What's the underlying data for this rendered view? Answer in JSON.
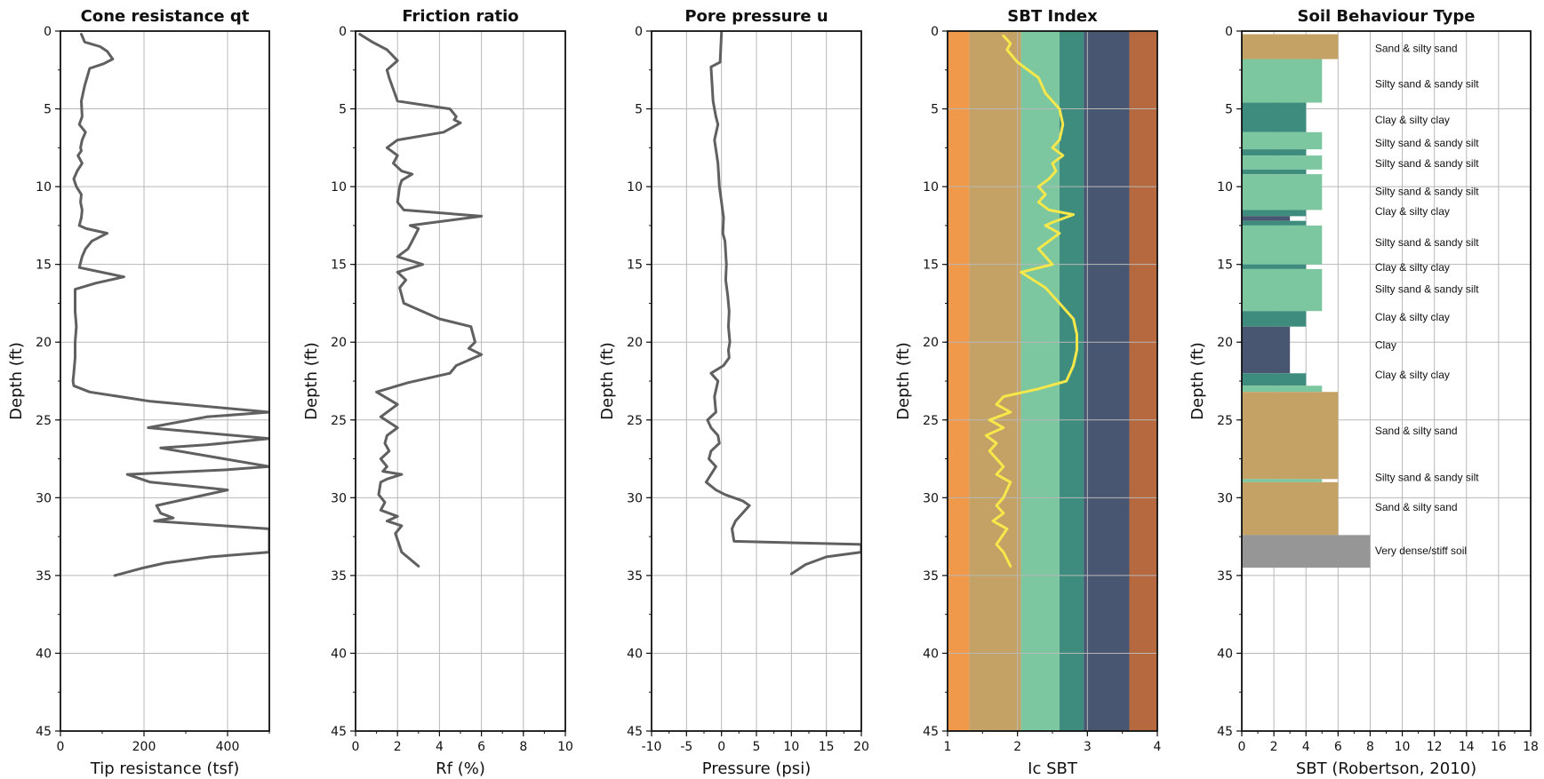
{
  "chart_data": [
    {
      "type": "line",
      "title": "Cone resistance qt",
      "xlabel": "Tip resistance (tsf)",
      "ylabel": "Depth (ft)",
      "xlim": [
        0,
        500
      ],
      "ylim": [
        45,
        0
      ],
      "xticks": [
        "0",
        "200",
        "400"
      ],
      "yticks": [
        "0",
        "5",
        "10",
        "15",
        "20",
        "25",
        "30",
        "35",
        "40",
        "45"
      ],
      "grid": true,
      "line_color": "#606060",
      "series": [
        {
          "x": [
            50,
            58,
            95,
            112,
            125,
            103,
            70,
            58,
            50,
            52,
            45,
            60,
            52,
            48,
            50,
            42,
            52,
            40,
            32,
            38,
            50,
            48,
            52,
            50,
            45,
            62,
            112,
            75,
            60,
            52,
            45,
            152,
            85,
            35,
            35,
            38,
            35,
            35,
            32,
            30,
            32,
            70,
            215,
            500,
            350,
            210,
            500,
            350,
            240,
            500,
            400,
            160,
            215,
            330,
            400,
            230,
            240,
            270,
            225,
            500,
            500,
            360,
            250,
            200,
            130
          ],
          "y": [
            0.2,
            0.7,
            1.0,
            1.3,
            1.8,
            2.1,
            2.4,
            3.5,
            4.5,
            5.5,
            6.0,
            6.5,
            7.0,
            7.5,
            7.7,
            8.0,
            8.5,
            9.0,
            9.5,
            10.0,
            10.5,
            11.0,
            11.5,
            12.0,
            12.5,
            12.7,
            13.0,
            13.5,
            14.0,
            14.5,
            15.2,
            15.8,
            16.2,
            16.6,
            18.0,
            19.0,
            20.0,
            21.0,
            22.0,
            22.5,
            22.8,
            23.2,
            23.8,
            24.5,
            24.8,
            25.5,
            26.2,
            26.6,
            26.8,
            28.0,
            28.2,
            28.5,
            29.0,
            29.3,
            29.5,
            30.5,
            31.0,
            31.3,
            31.5,
            32.0,
            33.5,
            33.8,
            34.2,
            34.5,
            35.0
          ]
        }
      ]
    },
    {
      "type": "line",
      "title": "Friction ratio",
      "xlabel": "Rf (%)",
      "ylabel": "Depth (ft)",
      "xlim": [
        0,
        10
      ],
      "ylim": [
        45,
        0
      ],
      "xticks": [
        "0",
        "2",
        "4",
        "6",
        "8",
        "10"
      ],
      "yticks": [
        "0",
        "5",
        "10",
        "15",
        "20",
        "25",
        "30",
        "35",
        "40",
        "45"
      ],
      "grid": true,
      "line_color": "#606060",
      "series": [
        {
          "x": [
            0.2,
            0.8,
            1.5,
            2.0,
            1.5,
            1.6,
            2.0,
            4.5,
            4.8,
            4.7,
            5.0,
            4.2,
            2.0,
            1.5,
            2.0,
            1.8,
            2.2,
            2.7,
            2.2,
            2.1,
            2.0,
            2.3,
            6.0,
            2.6,
            3.0,
            2.7,
            2.5,
            2.0,
            3.2,
            2.0,
            2.4,
            2.1,
            2.3,
            4.0,
            5.5,
            5.7,
            5.4,
            6.0,
            4.8,
            4.5,
            2.5,
            1.0,
            2.0,
            1.2,
            2.0,
            1.5,
            1.4,
            1.6,
            1.2,
            1.5,
            1.3,
            2.2,
            1.5,
            1.2,
            1.1,
            1.4,
            1.2,
            2.0,
            1.5,
            2.2,
            1.9,
            2.0,
            2.2,
            3.0
          ],
          "y": [
            0.2,
            0.7,
            1.2,
            1.9,
            2.5,
            3.0,
            4.5,
            5.0,
            5.5,
            5.7,
            5.9,
            6.5,
            7.0,
            7.5,
            8.0,
            8.5,
            9.0,
            9.2,
            9.6,
            10.0,
            11.0,
            11.5,
            11.9,
            12.5,
            12.7,
            13.5,
            14.0,
            14.5,
            15.0,
            15.5,
            16.0,
            16.5,
            17.5,
            18.5,
            19.0,
            20.0,
            20.4,
            20.8,
            21.5,
            22.0,
            22.6,
            23.2,
            24.0,
            24.8,
            25.5,
            26.0,
            26.5,
            27.0,
            27.5,
            28.0,
            28.3,
            28.5,
            28.8,
            29.0,
            29.8,
            30.3,
            30.8,
            31.2,
            31.5,
            31.8,
            32.3,
            32.7,
            33.5,
            34.4
          ]
        }
      ]
    },
    {
      "type": "line",
      "title": "Pore pressure u",
      "xlabel": "Pressure (psi)",
      "ylabel": "Depth (ft)",
      "xlim": [
        -10,
        20
      ],
      "ylim": [
        45,
        0
      ],
      "xticks": [
        "-10",
        "-5",
        "0",
        "5",
        "10",
        "15",
        "20"
      ],
      "yticks": [
        "0",
        "5",
        "10",
        "15",
        "20",
        "25",
        "30",
        "35",
        "40",
        "45"
      ],
      "grid": true,
      "line_color": "#606060",
      "series": [
        {
          "x": [
            0,
            -0.2,
            -1.5,
            -1.2,
            -1.0,
            -0.8,
            -0.5,
            -1.0,
            -0.5,
            -0.3,
            0.0,
            0.3,
            0.2,
            0.5,
            0.7,
            0.6,
            0.9,
            1.1,
            1.0,
            1.2,
            1.0,
            1.1,
            0.3,
            -1.5,
            -0.5,
            -1.0,
            -0.8,
            -2.0,
            -1.5,
            -0.5,
            -0.3,
            -1.5,
            -1.8,
            -0.8,
            -1.5,
            -2.2,
            -0.8,
            0.5,
            3.0,
            4.0,
            2.0,
            1.5,
            1.8,
            20.0,
            20.0,
            15.0,
            12.0,
            10.0
          ],
          "y": [
            0.1,
            2.0,
            2.3,
            4.5,
            5.0,
            5.5,
            6.0,
            7.0,
            8.5,
            10.0,
            11.0,
            12.0,
            13.0,
            13.5,
            15.0,
            16.0,
            17.0,
            18.0,
            19.0,
            20.0,
            20.5,
            21.0,
            21.5,
            22.0,
            22.5,
            23.5,
            24.5,
            25.0,
            25.5,
            26.0,
            26.5,
            27.0,
            27.5,
            28.0,
            28.5,
            29.0,
            29.5,
            29.8,
            30.2,
            30.5,
            31.5,
            32.0,
            32.8,
            33.0,
            33.5,
            33.8,
            34.3,
            34.9
          ]
        }
      ]
    },
    {
      "type": "line",
      "title": "SBT Index",
      "xlabel": "Ic SBT",
      "ylabel": "Depth (ft)",
      "xlim": [
        1,
        4
      ],
      "ylim": [
        45,
        0
      ],
      "xticks": [
        "1",
        "2",
        "3",
        "4"
      ],
      "yticks": [
        "0",
        "5",
        "10",
        "15",
        "20",
        "25",
        "30",
        "35",
        "40",
        "45"
      ],
      "grid": true,
      "line_color": "#f6e84a",
      "zones": [
        {
          "from": 1.0,
          "to": 1.31,
          "color": "#f0994a"
        },
        {
          "from": 1.31,
          "to": 2.05,
          "color": "#c4a265"
        },
        {
          "from": 2.05,
          "to": 2.6,
          "color": "#7cc6a0"
        },
        {
          "from": 2.6,
          "to": 2.95,
          "color": "#3e8c7e"
        },
        {
          "from": 2.95,
          "to": 3.6,
          "color": "#485672"
        },
        {
          "from": 3.6,
          "to": 4.0,
          "color": "#b6683e"
        }
      ],
      "series": [
        {
          "x": [
            1.8,
            1.9,
            1.85,
            2.0,
            2.3,
            2.4,
            2.6,
            2.65,
            2.6,
            2.5,
            2.65,
            2.5,
            2.55,
            2.45,
            2.3,
            2.4,
            2.3,
            2.45,
            2.8,
            2.5,
            2.4,
            2.6,
            2.3,
            2.5,
            2.05,
            2.4,
            2.6,
            2.8,
            2.85,
            2.85,
            2.8,
            2.7,
            2.3,
            1.8,
            1.7,
            1.9,
            1.6,
            1.8,
            1.55,
            1.7,
            1.6,
            1.8,
            1.7,
            1.9,
            1.8,
            1.7,
            1.8,
            1.65,
            1.85,
            1.7,
            1.8,
            1.9
          ],
          "y": [
            0.3,
            0.8,
            1.2,
            2.0,
            3.0,
            4.0,
            5.0,
            6.0,
            7.0,
            7.5,
            8.0,
            8.5,
            9.0,
            9.5,
            10.0,
            10.5,
            11.0,
            11.5,
            11.8,
            12.3,
            12.5,
            13.0,
            14.0,
            15.0,
            15.5,
            16.5,
            17.5,
            18.5,
            19.5,
            20.5,
            21.5,
            22.5,
            23.0,
            23.5,
            24.0,
            24.5,
            25.0,
            25.5,
            26.0,
            26.5,
            27.0,
            28.0,
            28.5,
            29.0,
            30.0,
            30.5,
            31.0,
            31.5,
            32.0,
            33.0,
            33.5,
            34.4
          ]
        }
      ]
    },
    {
      "type": "bar",
      "title": "Soil Behaviour Type",
      "xlabel": "SBT (Robertson, 2010)",
      "ylabel": "Depth (ft)",
      "xlim": [
        0,
        18
      ],
      "ylim": [
        45,
        0
      ],
      "xticks": [
        "0",
        "2",
        "4",
        "6",
        "8",
        "10",
        "12",
        "14",
        "16",
        "18"
      ],
      "yticks": [
        "0",
        "5",
        "10",
        "15",
        "20",
        "25",
        "30",
        "35",
        "40",
        "45"
      ],
      "grid": true,
      "layers": [
        {
          "top": 0.2,
          "bottom": 1.8,
          "sbt": 6,
          "color": "#c4a265"
        },
        {
          "top": 1.8,
          "bottom": 4.6,
          "sbt": 5,
          "color": "#7cc6a0"
        },
        {
          "top": 4.6,
          "bottom": 6.5,
          "sbt": 4,
          "color": "#3e8c7e"
        },
        {
          "top": 6.5,
          "bottom": 7.6,
          "sbt": 5,
          "color": "#7cc6a0"
        },
        {
          "top": 7.6,
          "bottom": 8.0,
          "sbt": 4,
          "color": "#3e8c7e"
        },
        {
          "top": 8.0,
          "bottom": 8.9,
          "sbt": 5,
          "color": "#7cc6a0"
        },
        {
          "top": 8.9,
          "bottom": 9.2,
          "sbt": 4,
          "color": "#3e8c7e"
        },
        {
          "top": 9.2,
          "bottom": 11.5,
          "sbt": 5,
          "color": "#7cc6a0"
        },
        {
          "top": 11.5,
          "bottom": 11.9,
          "sbt": 4,
          "color": "#3e8c7e"
        },
        {
          "top": 11.9,
          "bottom": 12.2,
          "sbt": 3,
          "color": "#485672"
        },
        {
          "top": 12.2,
          "bottom": 12.5,
          "sbt": 4,
          "color": "#3e8c7e"
        },
        {
          "top": 12.5,
          "bottom": 15.0,
          "sbt": 5,
          "color": "#7cc6a0"
        },
        {
          "top": 15.0,
          "bottom": 15.3,
          "sbt": 4,
          "color": "#3e8c7e"
        },
        {
          "top": 15.3,
          "bottom": 18.0,
          "sbt": 5,
          "color": "#7cc6a0"
        },
        {
          "top": 18.0,
          "bottom": 19.0,
          "sbt": 4,
          "color": "#3e8c7e"
        },
        {
          "top": 19.0,
          "bottom": 22.0,
          "sbt": 3,
          "color": "#485672"
        },
        {
          "top": 22.0,
          "bottom": 22.8,
          "sbt": 4,
          "color": "#3e8c7e"
        },
        {
          "top": 22.8,
          "bottom": 23.2,
          "sbt": 5,
          "color": "#7cc6a0"
        },
        {
          "top": 23.2,
          "bottom": 28.8,
          "sbt": 6,
          "color": "#c4a265"
        },
        {
          "top": 28.8,
          "bottom": 29.0,
          "sbt": 5,
          "color": "#7cc6a0"
        },
        {
          "top": 29.0,
          "bottom": 32.4,
          "sbt": 6,
          "color": "#c4a265"
        },
        {
          "top": 32.4,
          "bottom": 34.5,
          "sbt": 8,
          "color": "#969696"
        }
      ],
      "annotations": [
        {
          "depth": 1.1,
          "text": "Sand & silty sand"
        },
        {
          "depth": 3.4,
          "text": "Silty sand & sandy silt"
        },
        {
          "depth": 5.7,
          "text": "Clay & silty clay"
        },
        {
          "depth": 7.2,
          "text": "Silty sand & sandy silt"
        },
        {
          "depth": 8.5,
          "text": "Silty sand & sandy silt"
        },
        {
          "depth": 10.3,
          "text": "Silty sand & sandy silt"
        },
        {
          "depth": 11.6,
          "text": "Clay & silty clay"
        },
        {
          "depth": 13.6,
          "text": "Silty sand & sandy silt"
        },
        {
          "depth": 15.2,
          "text": "Clay & silty clay"
        },
        {
          "depth": 16.6,
          "text": "Silty sand & sandy silt"
        },
        {
          "depth": 18.4,
          "text": "Clay & silty clay"
        },
        {
          "depth": 20.2,
          "text": "Clay"
        },
        {
          "depth": 22.1,
          "text": "Clay & silty clay"
        },
        {
          "depth": 25.7,
          "text": "Sand & silty sand"
        },
        {
          "depth": 28.7,
          "text": "Silty sand & sandy silt"
        },
        {
          "depth": 30.6,
          "text": "Sand & silty sand"
        },
        {
          "depth": 33.4,
          "text": "Very dense/stiff soil"
        }
      ]
    }
  ]
}
